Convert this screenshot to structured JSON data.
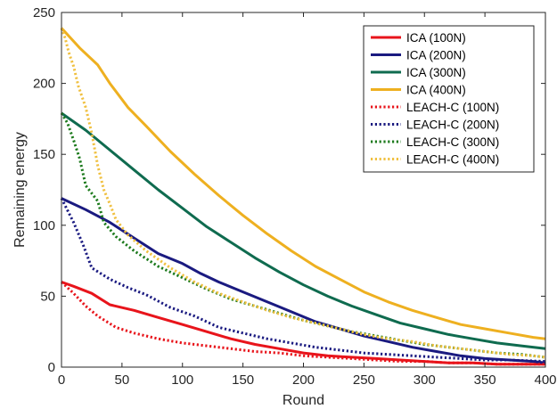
{
  "chart_data": {
    "type": "line",
    "title": "",
    "xlabel": "Round",
    "ylabel": "Remaining energy",
    "xlim": [
      0,
      400
    ],
    "ylim": [
      0,
      250
    ],
    "xticks": [
      0,
      50,
      100,
      150,
      200,
      250,
      300,
      350,
      400
    ],
    "yticks": [
      0,
      50,
      100,
      150,
      200,
      250
    ],
    "grid": false,
    "legend_position": "top-right",
    "series": [
      {
        "name": "ICA (100N)",
        "color": "#e8141b",
        "style": "solid",
        "x": [
          0,
          10,
          25,
          40,
          60,
          80,
          100,
          120,
          140,
          160,
          180,
          200,
          220,
          240,
          260,
          280,
          300,
          320,
          340,
          360,
          380,
          400
        ],
        "y": [
          60,
          57,
          52,
          44,
          40,
          35,
          30,
          25,
          20,
          16,
          13,
          10,
          8,
          7,
          6,
          5,
          4,
          3,
          3,
          2,
          2,
          2
        ]
      },
      {
        "name": "ICA (200N)",
        "color": "#1a1a80",
        "style": "solid",
        "x": [
          0,
          20,
          40,
          60,
          80,
          100,
          115,
          130,
          150,
          170,
          190,
          210,
          230,
          250,
          270,
          290,
          310,
          330,
          350,
          370,
          390,
          400
        ],
        "y": [
          119,
          111,
          102,
          91,
          80,
          73,
          66,
          60,
          53,
          46,
          39,
          32,
          27,
          22,
          18,
          14,
          11,
          8,
          6,
          5,
          4,
          3
        ]
      },
      {
        "name": "ICA (300N)",
        "color": "#0f6b4f",
        "style": "solid",
        "x": [
          0,
          20,
          40,
          60,
          80,
          100,
          120,
          140,
          160,
          180,
          200,
          220,
          240,
          260,
          280,
          300,
          320,
          340,
          360,
          380,
          400
        ],
        "y": [
          179,
          167,
          153,
          139,
          125,
          112,
          99,
          88,
          77,
          67,
          58,
          50,
          43,
          37,
          31,
          27,
          23,
          20,
          17,
          15,
          13
        ]
      },
      {
        "name": "ICA (400N)",
        "color": "#eeb020",
        "style": "solid",
        "x": [
          0,
          15,
          30,
          40,
          55,
          70,
          90,
          110,
          130,
          150,
          170,
          190,
          210,
          230,
          250,
          270,
          290,
          310,
          330,
          350,
          370,
          390,
          400
        ],
        "y": [
          239,
          225,
          213,
          200,
          183,
          170,
          152,
          136,
          121,
          107,
          94,
          82,
          71,
          62,
          53,
          46,
          40,
          35,
          30,
          27,
          24,
          21,
          20
        ]
      },
      {
        "name": "LEACH-C (100N)",
        "color": "#e8141b",
        "style": "dotted",
        "x": [
          0,
          10,
          20,
          30,
          45,
          60,
          80,
          100,
          120,
          140,
          160,
          180,
          200,
          220,
          240,
          260,
          280,
          300,
          320,
          340,
          360,
          380,
          400
        ],
        "y": [
          60,
          52,
          43,
          36,
          28,
          24,
          20,
          17,
          15,
          13,
          11,
          10,
          8,
          7,
          6,
          5,
          4,
          4,
          3,
          3,
          2,
          2,
          2
        ]
      },
      {
        "name": "LEACH-C (200N)",
        "color": "#1a1a80",
        "style": "dotted",
        "x": [
          0,
          10,
          18,
          25,
          40,
          55,
          70,
          90,
          110,
          130,
          150,
          170,
          190,
          210,
          230,
          250,
          270,
          290,
          310,
          330,
          350,
          370,
          400
        ],
        "y": [
          119,
          102,
          86,
          70,
          62,
          56,
          51,
          42,
          36,
          28,
          24,
          20,
          17,
          14,
          12,
          10,
          9,
          8,
          7,
          6,
          5,
          5,
          4
        ]
      },
      {
        "name": "LEACH-C (300N)",
        "color": "#1c7a1c",
        "style": "dotted",
        "x": [
          0,
          5,
          10,
          15,
          20,
          30,
          35,
          45,
          60,
          80,
          100,
          120,
          140,
          160,
          180,
          200,
          220,
          240,
          260,
          280,
          300,
          320,
          340,
          360,
          380,
          400
        ],
        "y": [
          179,
          172,
          160,
          147,
          128,
          117,
          102,
          92,
          82,
          71,
          63,
          55,
          48,
          43,
          38,
          33,
          29,
          25,
          22,
          19,
          16,
          14,
          12,
          10,
          9,
          7
        ]
      },
      {
        "name": "LEACH-C (400N)",
        "color": "#f0c040",
        "style": "dotted",
        "x": [
          0,
          3,
          6,
          10,
          14,
          20,
          25,
          30,
          35,
          40,
          45,
          55,
          70,
          90,
          110,
          130,
          150,
          170,
          190,
          210,
          230,
          250,
          270,
          290,
          310,
          330,
          350,
          370,
          390,
          400
        ],
        "y": [
          239,
          232,
          222,
          212,
          198,
          183,
          165,
          142,
          125,
          115,
          104,
          93,
          82,
          70,
          60,
          52,
          46,
          40,
          35,
          31,
          27,
          23,
          20,
          18,
          15,
          13,
          11,
          9,
          8,
          7
        ]
      }
    ]
  }
}
